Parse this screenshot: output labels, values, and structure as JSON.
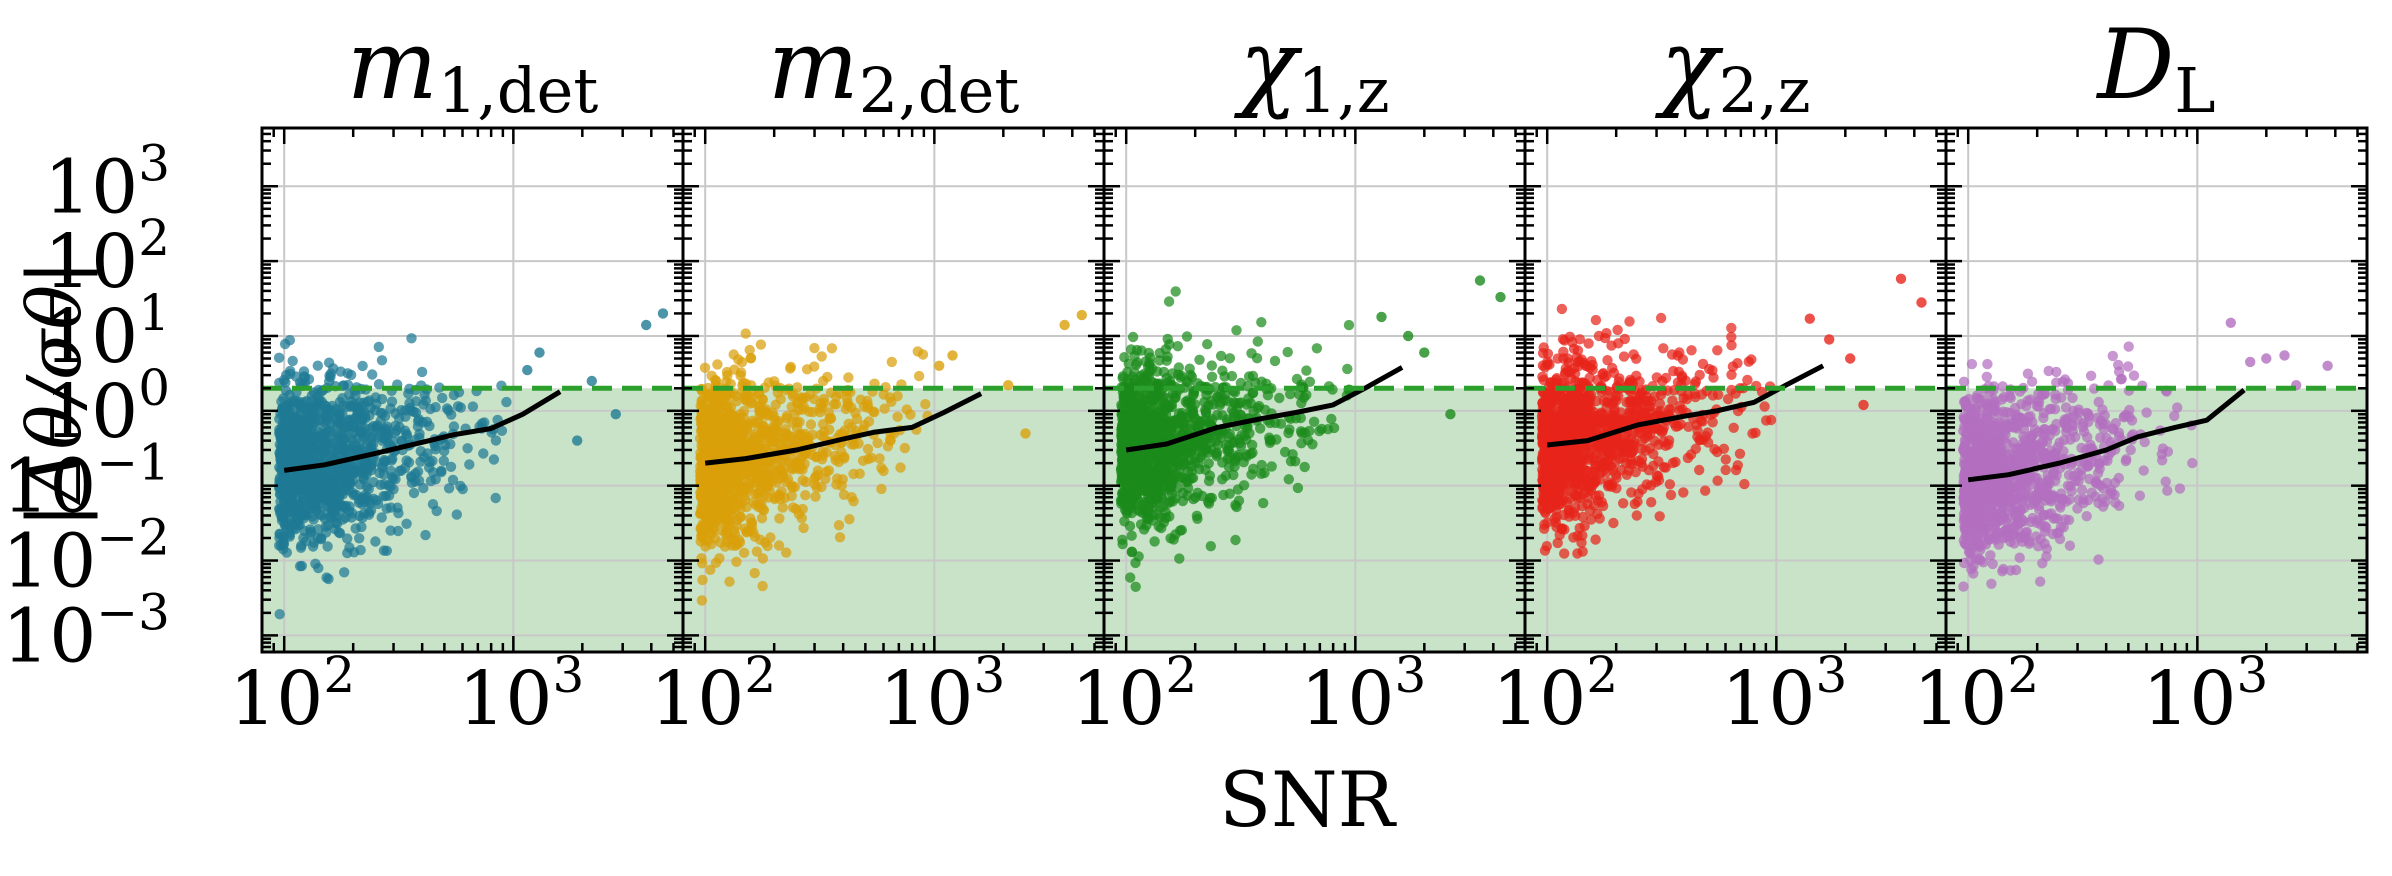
{
  "chart_data": {
    "type": "scatter",
    "xlabel": "SNR",
    "ylabel": "|Δθ/σθ|",
    "xscale": "log",
    "yscale": "log",
    "xlim": [
      80,
      5500
    ],
    "ylim": [
      0.0006,
      6000
    ],
    "x_ticks": [
      {
        "value": 100,
        "base": "10",
        "exp": "2"
      },
      {
        "value": 1000,
        "base": "10",
        "exp": "3"
      }
    ],
    "y_ticks": [
      {
        "value": 0.001,
        "base": "10",
        "exp": "−3"
      },
      {
        "value": 0.01,
        "base": "10",
        "exp": "−2"
      },
      {
        "value": 0.1,
        "base": "10",
        "exp": "−1"
      },
      {
        "value": 1,
        "base": "10",
        "exp": "0"
      },
      {
        "value": 10,
        "base": "10",
        "exp": "1"
      },
      {
        "value": 100,
        "base": "10",
        "exp": "2"
      },
      {
        "value": 1000,
        "base": "10",
        "exp": "3"
      }
    ],
    "threshold": {
      "value": 2,
      "color": "#2ca02c",
      "style": "dashed",
      "band_color": "#c8e3c8"
    },
    "panels": [
      {
        "title_main": "m",
        "title_sub": "1,det",
        "color": "#1f7a94",
        "median_line": {
          "x": [
            100,
            150,
            250,
            400,
            550,
            800,
            1100,
            1600
          ],
          "y": [
            0.16,
            0.19,
            0.27,
            0.38,
            0.48,
            0.58,
            0.9,
            1.8
          ]
        },
        "outliers": [
          {
            "x": 3800,
            "y": 14
          },
          {
            "x": 4500,
            "y": 20
          },
          {
            "x": 1300,
            "y": 6
          },
          {
            "x": 1150,
            "y": 3.5
          },
          {
            "x": 2200,
            "y": 2.5
          },
          {
            "x": 1900,
            "y": 0.4
          },
          {
            "x": 2800,
            "y": 0.9
          }
        ]
      },
      {
        "title_main": "m",
        "title_sub": "2,det",
        "color": "#d9a00a",
        "median_line": {
          "x": [
            100,
            150,
            250,
            400,
            550,
            800,
            1100,
            1600
          ],
          "y": [
            0.2,
            0.23,
            0.3,
            0.42,
            0.52,
            0.6,
            0.95,
            1.7
          ]
        },
        "outliers": [
          {
            "x": 3700,
            "y": 14
          },
          {
            "x": 4400,
            "y": 19
          },
          {
            "x": 1200,
            "y": 5.5
          },
          {
            "x": 1050,
            "y": 4
          },
          {
            "x": 2100,
            "y": 2.2
          },
          {
            "x": 2500,
            "y": 0.5
          }
        ]
      },
      {
        "title_main": "χ",
        "title_sub": "1,z",
        "color": "#1b8a1b",
        "median_line": {
          "x": [
            100,
            150,
            250,
            400,
            550,
            800,
            1100,
            1600
          ],
          "y": [
            0.3,
            0.36,
            0.6,
            0.8,
            0.95,
            1.2,
            2.0,
            3.8
          ]
        },
        "outliers": [
          {
            "x": 3500,
            "y": 55
          },
          {
            "x": 4300,
            "y": 33
          },
          {
            "x": 1300,
            "y": 18
          },
          {
            "x": 1700,
            "y": 10
          },
          {
            "x": 2000,
            "y": 6
          },
          {
            "x": 2600,
            "y": 0.9
          }
        ]
      },
      {
        "title_main": "χ",
        "title_sub": "2,z",
        "color": "#e8241a",
        "median_line": {
          "x": [
            100,
            150,
            250,
            400,
            550,
            800,
            1100,
            1600
          ],
          "y": [
            0.35,
            0.4,
            0.65,
            0.85,
            1.0,
            1.3,
            2.2,
            4.0
          ]
        },
        "outliers": [
          {
            "x": 3500,
            "y": 58
          },
          {
            "x": 4300,
            "y": 28
          },
          {
            "x": 1400,
            "y": 17
          },
          {
            "x": 1700,
            "y": 9
          },
          {
            "x": 2100,
            "y": 5
          },
          {
            "x": 2400,
            "y": 1.2
          }
        ]
      },
      {
        "title_main": "D",
        "title_sub": "L",
        "color": "#b36fbf",
        "median_line": {
          "x": [
            100,
            150,
            250,
            400,
            550,
            800,
            1100,
            1600
          ],
          "y": [
            0.12,
            0.14,
            0.2,
            0.3,
            0.45,
            0.6,
            0.75,
            1.9
          ]
        },
        "outliers": [
          {
            "x": 1400,
            "y": 15
          },
          {
            "x": 2000,
            "y": 5
          },
          {
            "x": 2400,
            "y": 5.5
          },
          {
            "x": 1700,
            "y": 4.5
          },
          {
            "x": 3700,
            "y": 4
          },
          {
            "x": 2700,
            "y": 2.2
          }
        ]
      }
    ]
  }
}
